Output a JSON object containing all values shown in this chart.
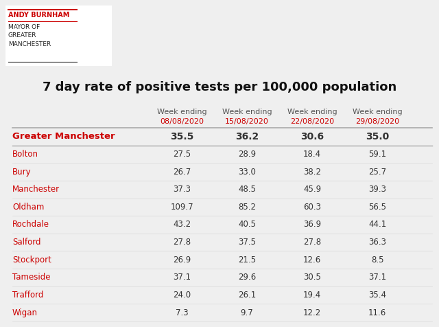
{
  "title": "7 day rate of positive tests per 100,000 population",
  "logo_name": "ANDY BURNHAM",
  "logo_sub": "MAYOR OF\nGREATER\nMANCHESTER",
  "col_headers_top": [
    "Week ending",
    "Week ending",
    "Week ending",
    "Week ending"
  ],
  "col_headers_date": [
    "08/08/2020",
    "15/08/2020",
    "22/08/2020",
    "29/08/2020"
  ],
  "rows": [
    {
      "area": "Greater Manchester",
      "values": [
        "35.5",
        "36.2",
        "30.6",
        "35.0"
      ],
      "bold": true,
      "red_area": true
    },
    {
      "area": "Bolton",
      "values": [
        "27.5",
        "28.9",
        "18.4",
        "59.1"
      ],
      "bold": false,
      "red_area": true
    },
    {
      "area": "Bury",
      "values": [
        "26.7",
        "33.0",
        "38.2",
        "25.7"
      ],
      "bold": false,
      "red_area": true
    },
    {
      "area": "Manchester",
      "values": [
        "37.3",
        "48.5",
        "45.9",
        "39.3"
      ],
      "bold": false,
      "red_area": true
    },
    {
      "area": "Oldham",
      "values": [
        "109.7",
        "85.2",
        "60.3",
        "56.5"
      ],
      "bold": false,
      "red_area": true
    },
    {
      "area": "Rochdale",
      "values": [
        "43.2",
        "40.5",
        "36.9",
        "44.1"
      ],
      "bold": false,
      "red_area": true
    },
    {
      "area": "Salford",
      "values": [
        "27.8",
        "37.5",
        "27.8",
        "36.3"
      ],
      "bold": false,
      "red_area": true
    },
    {
      "area": "Stockport",
      "values": [
        "26.9",
        "21.5",
        "12.6",
        "8.5"
      ],
      "bold": false,
      "red_area": true
    },
    {
      "area": "Tameside",
      "values": [
        "37.1",
        "29.6",
        "30.5",
        "37.1"
      ],
      "bold": false,
      "red_area": true
    },
    {
      "area": "Trafford",
      "values": [
        "24.0",
        "26.1",
        "19.4",
        "35.4"
      ],
      "bold": false,
      "red_area": true
    },
    {
      "area": "Wigan",
      "values": [
        "7.3",
        "9.7",
        "12.2",
        "11.6"
      ],
      "bold": false,
      "red_area": true
    }
  ],
  "bg_color": "#efefef",
  "white_box_color": "#ffffff",
  "header_text_color": "#555555",
  "date_color": "#cc0000",
  "area_red_color": "#cc0000",
  "value_color": "#333333",
  "line_color_dark": "#aaaaaa",
  "line_color_light": "#dddddd",
  "title_color": "#111111",
  "logo_name_color": "#cc0000",
  "logo_sub_color": "#222222"
}
